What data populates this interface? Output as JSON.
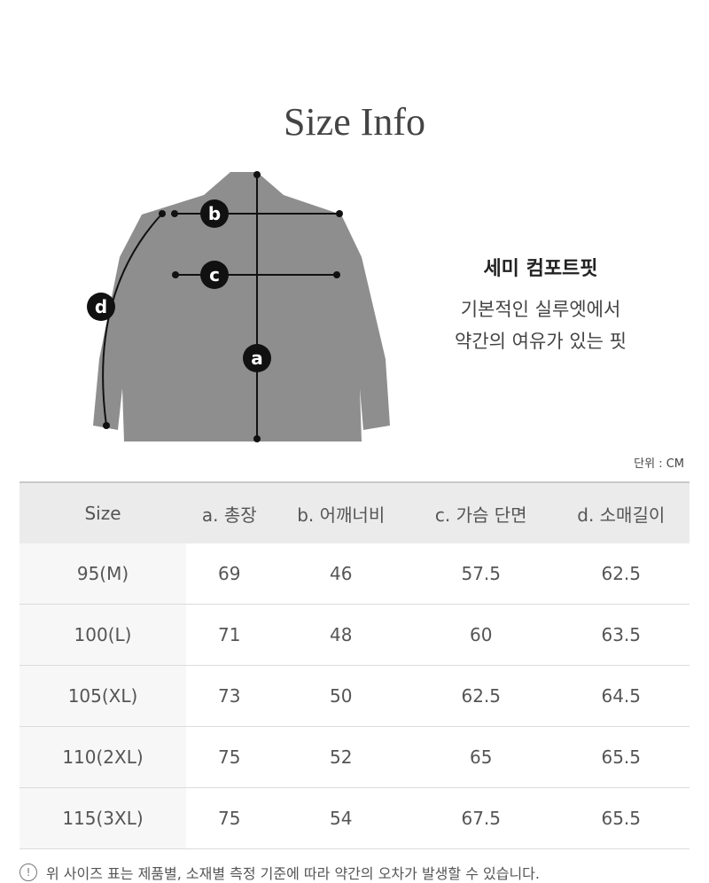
{
  "title": "Size Info",
  "diagram": {
    "labels": {
      "a": "a",
      "b": "b",
      "c": "c",
      "d": "d"
    },
    "jacket_color": "#8e8e8e"
  },
  "fit": {
    "name": "세미 컴포트핏",
    "desc_line1": "기본적인 실루엣에서",
    "desc_line2": "약간의 여유가 있는 핏"
  },
  "unit": "단위 : CM",
  "table": {
    "headers": [
      "Size",
      "a. 총장",
      "b. 어깨너비",
      "c. 가슴 단면",
      "d. 소매길이"
    ],
    "rows": [
      [
        "95(M)",
        "69",
        "46",
        "57.5",
        "62.5"
      ],
      [
        "100(L)",
        "71",
        "48",
        "60",
        "63.5"
      ],
      [
        "105(XL)",
        "73",
        "50",
        "62.5",
        "64.5"
      ],
      [
        "110(2XL)",
        "75",
        "52",
        "65",
        "65.5"
      ],
      [
        "115(3XL)",
        "75",
        "54",
        "67.5",
        "65.5"
      ]
    ]
  },
  "note": {
    "icon": "exclamation-circle-icon",
    "icon_glyph": "!",
    "text": "위 사이즈 표는 제품별, 소재별 측정 기준에 따라 약간의 오차가 발생할 수 있습니다."
  }
}
